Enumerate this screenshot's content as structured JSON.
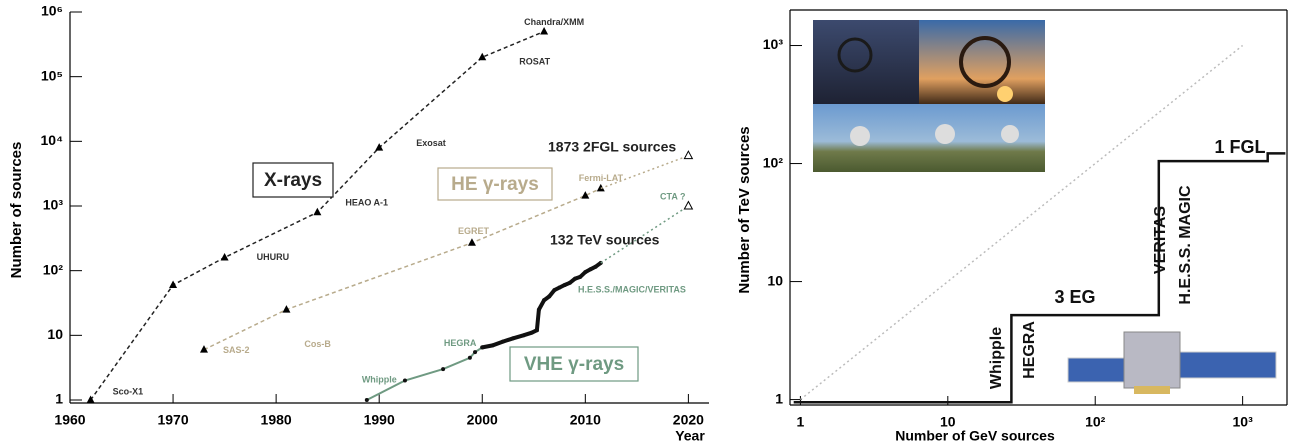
{
  "chart_data": [
    {
      "type": "line",
      "log_y": true,
      "frame": false,
      "x_label": "Year",
      "y_label": "Number of sources",
      "xlim": [
        1960,
        2022
      ],
      "ylim": [
        1,
        1000000
      ],
      "xticks": [
        1960,
        1970,
        1980,
        1990,
        2000,
        2010,
        2020
      ],
      "yticks": [
        1,
        10,
        {
          "value": 100,
          "label": "10²"
        },
        {
          "value": 1000,
          "label": "10³"
        },
        {
          "value": 10000,
          "label": "10⁴"
        },
        {
          "value": 100000,
          "label": "10⁵"
        },
        {
          "value": 1000000,
          "label": "10⁶"
        }
      ],
      "series": [
        {
          "name": "X-rays",
          "color": "#222222",
          "style": "dashed",
          "marker": "triangle",
          "x": [
            1962,
            1970,
            1975,
            1984,
            1990,
            2000,
            2006
          ],
          "values": [
            1,
            60,
            160,
            800,
            8000,
            200000,
            500000
          ],
          "point_labels": [
            "Sco-X1",
            null,
            "UHURU",
            "HEAO A-1",
            "Exosat",
            "ROSAT",
            "Chandra/XMM"
          ]
        },
        {
          "name": "HE γ-rays",
          "color": "#b8ab8c",
          "style": "dashed",
          "marker": "triangle",
          "x": [
            1973,
            1981,
            1999,
            2010,
            2011.5
          ],
          "values": [
            6,
            25,
            270,
            1450,
            1873
          ],
          "point_labels": [
            "SAS-2",
            "Cos-B",
            "EGRET",
            null,
            "Fermi-LAT"
          ]
        },
        {
          "color": "#b8ab8c",
          "style": "dotted",
          "marker": "open-end",
          "x": [
            2011.5,
            2020
          ],
          "values": [
            1873,
            6000
          ]
        },
        {
          "name": "VHE γ-rays",
          "color": "#6f9a82",
          "style": "solid",
          "marker": "dot",
          "x": [
            1988.8,
            1992.5,
            1996.2,
            1998.8,
            1999.3,
            2000
          ],
          "values": [
            1,
            2,
            3,
            4.5,
            5.5,
            6.5
          ],
          "point_labels": [
            "Whipple",
            null,
            null,
            "HEGRA",
            null,
            null
          ]
        },
        {
          "color": "#111111",
          "style": "thick",
          "marker": "dot",
          "x": [
            2000,
            2001,
            2002,
            2003,
            2004,
            2004.8,
            2005.3,
            2005.5,
            2006,
            2006.5,
            2007,
            2007.5,
            2008,
            2008.5,
            2009,
            2009.5,
            2010,
            2010.5,
            2011,
            2011.5
          ],
          "values": [
            6.5,
            7,
            8,
            9,
            10,
            11,
            12,
            25,
            35,
            40,
            50,
            55,
            60,
            65,
            75,
            80,
            95,
            105,
            115,
            132
          ]
        },
        {
          "color": "#6f9a82",
          "style": "dotted",
          "marker": "open-end",
          "x": [
            2011.5,
            2020
          ],
          "values": [
            132,
            1000
          ]
        }
      ],
      "annotations": [
        "1873 2FGL sources",
        "132 TeV sources",
        "H.E.S.S./MAGIC/VERITAS",
        "CTA ?"
      ]
    },
    {
      "type": "line",
      "log_x": true,
      "log_y": true,
      "frame": true,
      "x_label": "Number of GeV sources",
      "y_label": "Number of TeV sources",
      "xlim": [
        0.85,
        2000
      ],
      "ylim": [
        0.9,
        2000
      ],
      "xticks": [
        1,
        10,
        {
          "value": 100,
          "label": "10²"
        },
        {
          "value": 1000,
          "label": "10³"
        }
      ],
      "yticks": [
        1,
        10,
        {
          "value": 100,
          "label": "10²"
        },
        {
          "value": 1000,
          "label": "10³"
        }
      ],
      "series": [
        {
          "color": "#111111",
          "style": "step",
          "x": [
            0.9,
            27,
            27,
            270,
            270,
            1480,
            1480,
            1950
          ],
          "values": [
            0.95,
            0.95,
            5.2,
            5.2,
            105,
            105,
            122,
            122
          ]
        },
        {
          "color": "#bbbbbb",
          "style": "dotted",
          "x": [
            1,
            1000
          ],
          "values": [
            1,
            1000
          ]
        }
      ],
      "annotations": [
        "Whipple",
        "HEGRA",
        "3 EG",
        "VERITAS",
        "H.E.S.S. MAGIC",
        "1 FGL"
      ]
    }
  ]
}
